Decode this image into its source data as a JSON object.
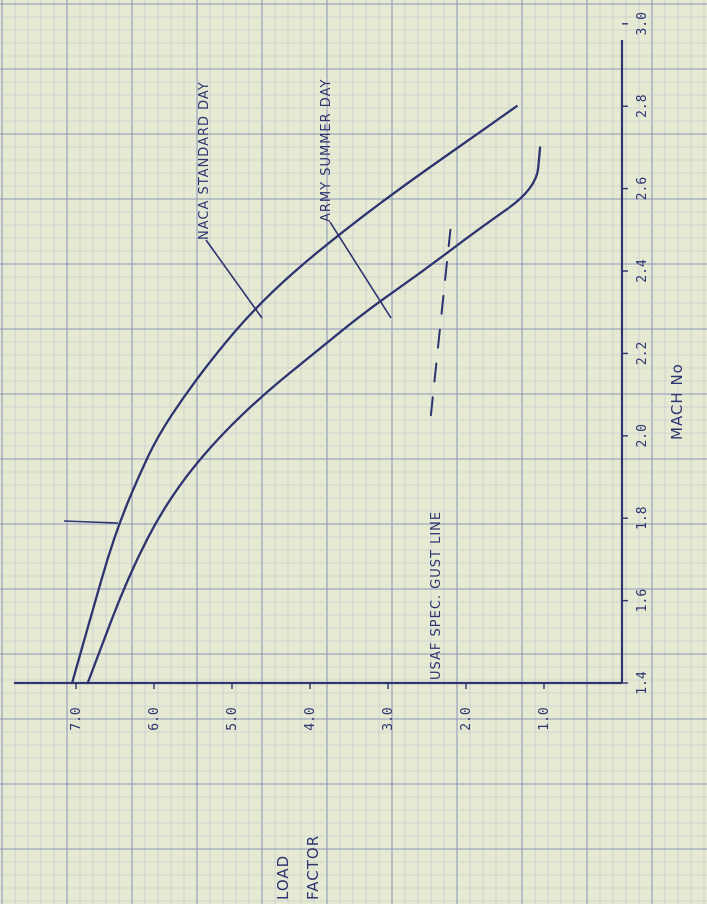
{
  "chart_data": {
    "type": "line",
    "orientation": "rotated-90-clockwise",
    "x_axis": {
      "title": "MACH No",
      "ticks": [
        "1.4",
        "1.6",
        "1.8",
        "2.0",
        "2.2",
        "2.4",
        "2.6",
        "2.8",
        "3.0"
      ],
      "range": [
        1.4,
        3.0
      ]
    },
    "y_axis": {
      "title_lines": [
        "LOAD",
        "FACTOR"
      ],
      "ticks": [
        "7.0",
        "6.0",
        "5.0",
        "4.0",
        "3.0",
        "2.0",
        "1.0"
      ],
      "range": [
        0,
        7.4
      ]
    },
    "grid": true,
    "series": [
      {
        "name": "NACA STANDARD DAY",
        "x": [
          1.4,
          1.5,
          1.6,
          1.7,
          1.8,
          1.9,
          2.0,
          2.1,
          2.2,
          2.3,
          2.4,
          2.5,
          2.6,
          2.7,
          2.8
        ],
        "y": [
          7.05,
          6.9,
          6.75,
          6.6,
          6.42,
          6.2,
          5.95,
          5.6,
          5.2,
          4.75,
          4.2,
          3.55,
          2.85,
          2.1,
          1.35
        ]
      },
      {
        "name": "ARMY SUMMER DAY",
        "x": [
          1.4,
          1.5,
          1.6,
          1.7,
          1.8,
          1.9,
          2.0,
          2.1,
          2.2,
          2.3,
          2.4,
          2.5,
          2.6,
          2.7
        ],
        "y": [
          6.85,
          6.65,
          6.45,
          6.22,
          5.95,
          5.6,
          5.15,
          4.6,
          3.95,
          3.3,
          2.55,
          1.85,
          1.1,
          1.05
        ]
      },
      {
        "name": "USAF SPEC. GUST LINE",
        "style": "dashed",
        "x": [
          2.05,
          2.5
        ],
        "y": [
          2.45,
          2.2
        ]
      }
    ],
    "annotations": [
      {
        "text": "NACA STANDARD DAY"
      },
      {
        "text": "ARMY SUMMER DAY"
      },
      {
        "text": "USAF SPEC. GUST LINE"
      }
    ]
  }
}
